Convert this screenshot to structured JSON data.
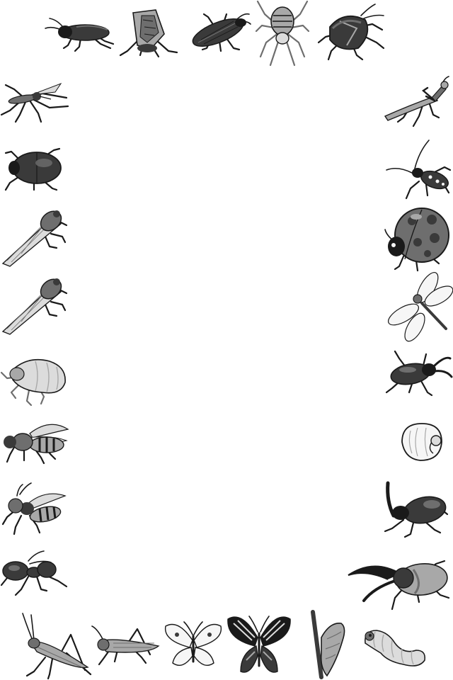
{
  "page": {
    "background": "#ffffff"
  },
  "palette": {
    "outline": "#1a1a1a",
    "dark": "#3a3a3a",
    "mid": "#6e6e6e",
    "light": "#a8a8a8",
    "pale": "#dcdcdc",
    "white": "#f6f6f6"
  },
  "border": {
    "top": [
      {
        "icon": "cricket-icon",
        "kind": "cricket"
      },
      {
        "icon": "cicada-icon",
        "kind": "cicada"
      },
      {
        "icon": "click-beetle-icon",
        "kind": "beetle-long"
      },
      {
        "icon": "spider-icon",
        "kind": "spider"
      },
      {
        "icon": "stink-bug-icon",
        "kind": "stinkbug"
      }
    ],
    "left": [
      {
        "icon": "mosquito-icon",
        "kind": "mosquito"
      },
      {
        "icon": "scarab-beetle-icon",
        "kind": "beetle-round"
      },
      {
        "icon": "cicada-icon",
        "kind": "cicada-side"
      },
      {
        "icon": "cicada-icon",
        "kind": "cicada-side"
      },
      {
        "icon": "cicada-nymph-shell-icon",
        "kind": "shell"
      },
      {
        "icon": "honeybee-icon",
        "kind": "bee"
      },
      {
        "icon": "hornet-icon",
        "kind": "wasp"
      },
      {
        "icon": "ant-icon",
        "kind": "ant"
      }
    ],
    "right": [
      {
        "icon": "praying-mantis-icon",
        "kind": "mantis"
      },
      {
        "icon": "longhorn-beetle-icon",
        "kind": "longhorn"
      },
      {
        "icon": "ladybug-icon",
        "kind": "ladybug"
      },
      {
        "icon": "dragonfly-icon",
        "kind": "dragonfly"
      },
      {
        "icon": "stag-beetle-icon",
        "kind": "stag"
      },
      {
        "icon": "grub-larva-icon",
        "kind": "grub"
      },
      {
        "icon": "rhinoceros-beetle-icon",
        "kind": "rhino"
      },
      {
        "icon": "hercules-beetle-icon",
        "kind": "hercules"
      }
    ],
    "bottom": [
      {
        "icon": "grasshopper-icon",
        "kind": "grasshopper"
      },
      {
        "icon": "locust-icon",
        "kind": "locust"
      },
      {
        "icon": "cabbage-butterfly-icon",
        "kind": "butterfly-white"
      },
      {
        "icon": "swallowtail-butterfly-icon",
        "kind": "butterfly-dark"
      },
      {
        "icon": "chrysalis-icon",
        "kind": "pupa"
      },
      {
        "icon": "caterpillar-icon",
        "kind": "caterpillar"
      }
    ]
  }
}
